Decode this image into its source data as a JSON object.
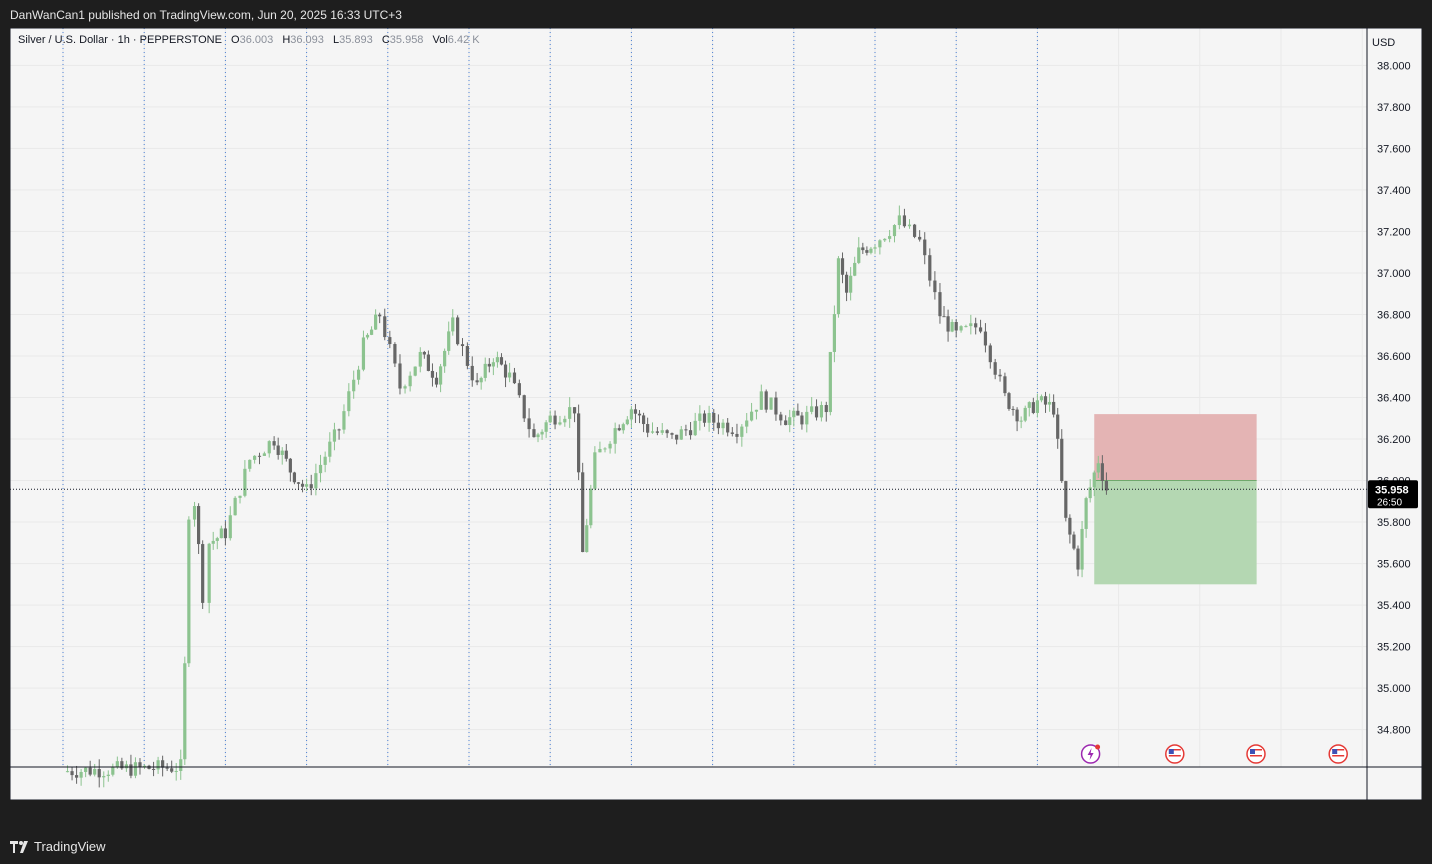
{
  "header": {
    "published_text": "DanWanCan1 published on TradingView.com, Jun 20, 2025 16:33 UTC+3"
  },
  "legend": {
    "symbol": "Silver / U.S. Dollar · 1h · PEPPERSTONE",
    "o_label": "O",
    "o_value": "36.003",
    "h_label": "H",
    "h_value": "36.093",
    "l_label": "L",
    "l_value": "35.893",
    "c_label": "C",
    "c_value": "35.958",
    "vol_label": "Vol",
    "vol_value": "6.42 K"
  },
  "price_axis": {
    "currency": "USD",
    "current_price": "35.958",
    "countdown": "26:50"
  },
  "footer": {
    "brand": "TradingView"
  },
  "colors": {
    "up": "#8cc38f",
    "down": "#666666",
    "risk_zone": "#e4b4b4",
    "reward_zone": "#b4d7b2",
    "label_bg": "#000000"
  },
  "icons": [
    "flash-event-icon",
    "us-flag-icon",
    "us-flag-icon",
    "us-flag-icon"
  ],
  "chart_data": {
    "type": "candlestick",
    "title": "Silver / U.S. Dollar · 1h · PEPPERSTONE",
    "ylim": [
      34.62,
      38.18
    ],
    "y_ticks": [
      "38.000",
      "37.800",
      "37.600",
      "37.400",
      "37.200",
      "37.000",
      "36.800",
      "36.600",
      "36.400",
      "36.200",
      "36.000",
      "35.800",
      "35.600",
      "35.400",
      "35.200",
      "35.000",
      "34.800"
    ],
    "x_ticks": [
      "4",
      "5",
      "6",
      "9",
      "10",
      "11",
      "12",
      "13",
      "16",
      "17",
      "18",
      "19",
      "20",
      "23",
      "24",
      "25",
      "26"
    ],
    "bold_ticks": [
      "9",
      "16",
      "23"
    ],
    "day_session_breaks": [
      "4",
      "5",
      "6",
      "9",
      "10",
      "11",
      "12",
      "13",
      "16",
      "17",
      "18",
      "19",
      "20"
    ],
    "current_price": 35.958,
    "position_tool": {
      "type": "short",
      "entry": 36.0,
      "stop": 36.32,
      "target": 35.5,
      "start_day": "22.7",
      "end_day": "24.7"
    },
    "price_path": [
      [
        "4",
        34.6
      ],
      [
        "5.45",
        34.62
      ],
      [
        "5.5",
        35.1
      ],
      [
        "5.55",
        35.85
      ],
      [
        "5.62",
        35.9
      ],
      [
        "5.72",
        35.45
      ],
      [
        "5.8",
        35.7
      ],
      [
        "6.0",
        35.75
      ],
      [
        "6.3",
        36.1
      ],
      [
        "6.6",
        36.2
      ],
      [
        "6.8",
        36.05
      ],
      [
        "9.0",
        35.95
      ],
      [
        "9.4",
        36.25
      ],
      [
        "9.7",
        36.65
      ],
      [
        "9.9",
        36.8
      ],
      [
        "10.15",
        36.45
      ],
      [
        "10.4",
        36.6
      ],
      [
        "10.6",
        36.5
      ],
      [
        "10.8",
        36.75
      ],
      [
        "11.1",
        36.45
      ],
      [
        "11.3",
        36.6
      ],
      [
        "11.5",
        36.5
      ],
      [
        "11.8",
        36.2
      ],
      [
        "12.0",
        36.3
      ],
      [
        "12.3",
        36.35
      ],
      [
        "12.4",
        35.65
      ],
      [
        "12.55",
        36.1
      ],
      [
        "12.8",
        36.25
      ],
      [
        "13.0",
        36.35
      ],
      [
        "13.2",
        36.25
      ],
      [
        "13.5",
        36.2
      ],
      [
        "13.9",
        36.3
      ],
      [
        "16.3",
        36.25
      ],
      [
        "16.6",
        36.4
      ],
      [
        "16.9",
        36.3
      ],
      [
        "17.1",
        36.3
      ],
      [
        "17.4",
        36.35
      ],
      [
        "17.55",
        37.05
      ],
      [
        "17.65",
        36.9
      ],
      [
        "17.8",
        37.1
      ],
      [
        "18.0",
        37.15
      ],
      [
        "18.3",
        37.25
      ],
      [
        "18.55",
        37.15
      ],
      [
        "18.8",
        36.8
      ],
      [
        "19.0",
        36.7
      ],
      [
        "19.3",
        36.75
      ],
      [
        "19.6",
        36.4
      ],
      [
        "19.8",
        36.3
      ],
      [
        "20.0",
        36.38
      ],
      [
        "20.2",
        36.35
      ],
      [
        "20.35",
        35.8
      ],
      [
        "20.5",
        35.6
      ],
      [
        "20.6",
        35.9
      ],
      [
        "20.75",
        36.1
      ],
      [
        "20.85",
        35.96
      ]
    ]
  }
}
